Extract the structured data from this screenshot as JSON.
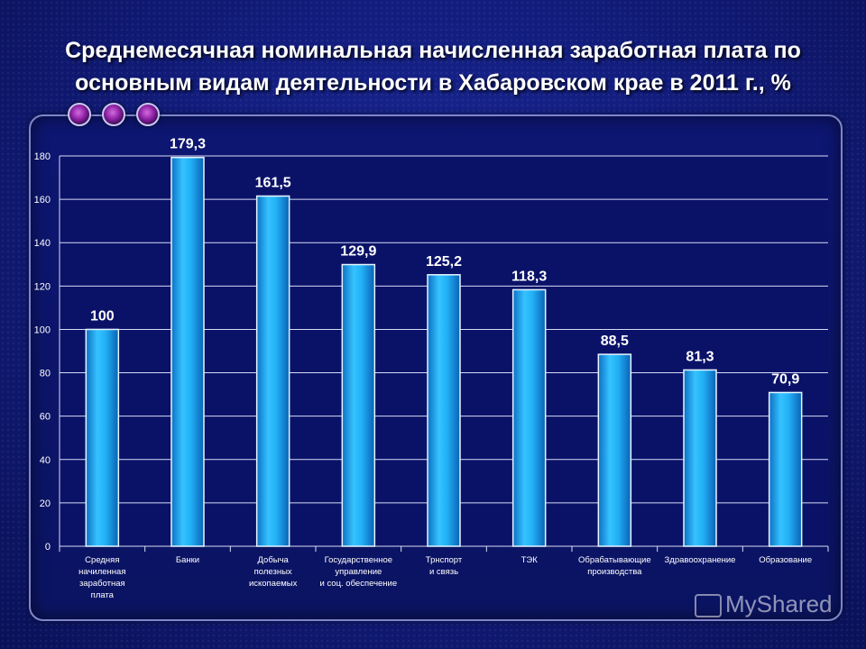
{
  "title_line1": "Среднемесячная  номинальная начисленная заработная плата по",
  "title_line2": "основным видам деятельности в Хабаровском крае в 2011 г., %",
  "watermark": "MyShared",
  "chart_data": {
    "type": "bar",
    "categories": [
      [
        "Средняя",
        "начиленная",
        "заработная",
        "плата"
      ],
      [
        "Банки"
      ],
      [
        "Добыча",
        "полезных",
        "ископаемых"
      ],
      [
        "Государственное",
        "управление",
        "и соц. обеспечение"
      ],
      [
        "Трнспорт",
        "и связь"
      ],
      [
        "ТЭК"
      ],
      [
        "Обрабатывающие",
        "производства"
      ],
      [
        "Здравоохранение"
      ],
      [
        "Образование"
      ]
    ],
    "values": [
      100,
      179.3,
      161.5,
      129.9,
      125.2,
      118.3,
      88.5,
      81.3,
      70.9
    ],
    "value_labels": [
      "100",
      "179,3",
      "161,5",
      "129,9",
      "125,2",
      "118,3",
      "88,5",
      "81,3",
      "70,9"
    ],
    "yticks": [
      "0",
      "20",
      "40",
      "60",
      "80",
      "100",
      "120",
      "140",
      "160",
      "180"
    ],
    "ylim": [
      0,
      180
    ],
    "grid": true,
    "bar_color": "#1ea6f0"
  }
}
